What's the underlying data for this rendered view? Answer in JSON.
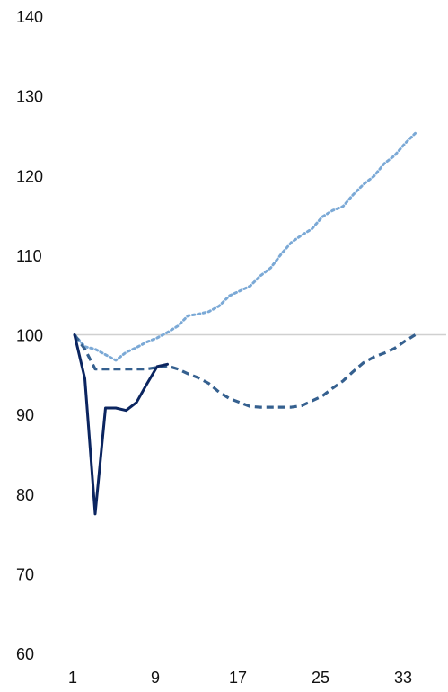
{
  "chart_data": {
    "type": "line",
    "title": "",
    "xlabel": "",
    "ylabel": "",
    "xlim": [
      1,
      34
    ],
    "ylim": [
      60,
      140
    ],
    "x_ticks": [
      1,
      9,
      17,
      25,
      33
    ],
    "y_ticks": [
      60,
      70,
      80,
      90,
      100,
      110,
      120,
      130,
      140
    ],
    "reference_line": {
      "y": 100,
      "color": "#d0d0d0"
    },
    "grid": false,
    "legend": "none",
    "series": [
      {
        "style": "solid",
        "color": "#0b2560",
        "x": [
          1,
          2,
          3,
          4,
          5,
          6,
          7,
          8,
          9,
          10
        ],
        "y": [
          100,
          94.5,
          77.5,
          90.8,
          90.8,
          90.5,
          91.5,
          93.8,
          96,
          96.3
        ]
      },
      {
        "style": "dashed",
        "color": "#35608f",
        "x": [
          1,
          2,
          3,
          4,
          5,
          6,
          7,
          8,
          9,
          10,
          11,
          12,
          13,
          14,
          15,
          16,
          17,
          18,
          19,
          20,
          21,
          22,
          23,
          24,
          25,
          26,
          27,
          28,
          29,
          30,
          31,
          32,
          33,
          34
        ],
        "y": [
          100,
          98.2,
          95.7,
          95.7,
          95.7,
          95.7,
          95.7,
          95.7,
          95.9,
          96.1,
          95.7,
          95.1,
          94.6,
          93.9,
          92.8,
          92,
          91.5,
          91,
          90.9,
          90.9,
          90.9,
          90.9,
          91.1,
          91.7,
          92.3,
          93.3,
          94.2,
          95.4,
          96.5,
          97.2,
          97.7,
          98.3,
          99.2,
          100
        ]
      },
      {
        "style": "dotted",
        "color": "#7ba9d6",
        "x": [
          1,
          2,
          3,
          4,
          5,
          6,
          7,
          8,
          9,
          10,
          11,
          12,
          13,
          14,
          15,
          16,
          17,
          18,
          19,
          20,
          21,
          22,
          23,
          24,
          25,
          26,
          27,
          28,
          29,
          30,
          31,
          32,
          33,
          34
        ],
        "y": [
          100,
          98.5,
          98.2,
          97.5,
          96.8,
          97.8,
          98.4,
          99.1,
          99.6,
          100.3,
          101.1,
          102.4,
          102.6,
          102.9,
          103.6,
          104.9,
          105.5,
          106.1,
          107.4,
          108.4,
          110.1,
          111.6,
          112.5,
          113.3,
          114.8,
          115.6,
          116.1,
          117.6,
          118.9,
          119.9,
          121.5,
          122.5,
          124,
          125.3
        ]
      }
    ]
  }
}
